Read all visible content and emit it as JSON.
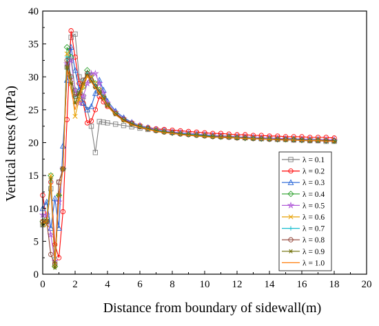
{
  "chart_data": {
    "type": "line",
    "title": "",
    "xlabel": "Distance from boundary of sidewall(m)",
    "ylabel": "Vertical stress (MPa)",
    "xlim": [
      0,
      20
    ],
    "ylim": [
      0,
      40
    ],
    "xticks": [
      0,
      2,
      4,
      6,
      8,
      10,
      12,
      14,
      16,
      18,
      20
    ],
    "yticks": [
      0,
      5,
      10,
      15,
      20,
      25,
      30,
      35,
      40
    ],
    "grid": false,
    "legend_position": "bottom-right",
    "series": [
      {
        "name": "λ = 0.1",
        "color": "#7f7f7f",
        "marker": "square",
        "x": [
          0,
          0.25,
          0.5,
          0.75,
          1,
          1.25,
          1.5,
          1.75,
          2,
          2.25,
          2.5,
          2.75,
          3,
          3.25,
          3.5,
          3.75,
          4,
          4.5,
          5,
          5.5,
          6,
          6.5,
          7,
          7.5,
          8,
          8.5,
          9,
          9.5,
          10,
          10.5,
          11,
          11.5,
          12,
          12.5,
          13,
          13.5,
          14,
          14.5,
          15,
          15.5,
          16,
          16.5,
          17,
          17.5,
          18
        ],
        "y": [
          7.5,
          8,
          13,
          1.8,
          14,
          16,
          31.5,
          36,
          36.5,
          30,
          27,
          25,
          22.5,
          18.5,
          23.2,
          23.1,
          23,
          22.8,
          22.6,
          22.4,
          22.2,
          22,
          21.9,
          21.8,
          21.6,
          21.5,
          21.4,
          21.3,
          21.2,
          21.1,
          21,
          20.9,
          20.8,
          20.8,
          20.7,
          20.6,
          20.6,
          20.5,
          20.5,
          20.4,
          20.4,
          20.3,
          20.3,
          20.2,
          20.2
        ]
      },
      {
        "name": "λ = 0.2",
        "color": "#ff0000",
        "marker": "circle",
        "x": [
          0,
          0.25,
          0.5,
          0.75,
          1,
          1.25,
          1.5,
          1.75,
          2,
          2.25,
          2.5,
          2.75,
          3,
          3.25,
          3.5,
          3.75,
          4,
          4.5,
          5,
          5.5,
          6,
          6.5,
          7,
          7.5,
          8,
          8.5,
          9,
          9.5,
          10,
          10.5,
          11,
          11.5,
          12,
          12.5,
          13,
          13.5,
          14,
          14.5,
          15,
          15.5,
          16,
          16.5,
          17,
          17.5,
          18
        ],
        "y": [
          12,
          8,
          14,
          4.5,
          2.5,
          9.5,
          23.5,
          37,
          33,
          29,
          26,
          23,
          23.3,
          25,
          27,
          26.2,
          25.5,
          24.5,
          23.6,
          23,
          22.6,
          22.3,
          22.1,
          22,
          21.9,
          21.8,
          21.7,
          21.6,
          21.5,
          21.4,
          21.4,
          21.3,
          21.2,
          21.2,
          21.1,
          21.1,
          21,
          21,
          20.9,
          20.9,
          20.9,
          20.8,
          20.8,
          20.8,
          20.7
        ]
      },
      {
        "name": "λ = 0.3",
        "color": "#1f5fd6",
        "marker": "triangle",
        "x": [
          0,
          0.25,
          0.5,
          0.75,
          1,
          1.25,
          1.5,
          1.75,
          2,
          2.25,
          2.5,
          2.75,
          3,
          3.25,
          3.5,
          3.75,
          4,
          4.5,
          5,
          5.5,
          6,
          6.5,
          7,
          7.5,
          8,
          8.5,
          9,
          9.5,
          10,
          10.5,
          11,
          11.5,
          12,
          12.5,
          13,
          13.5,
          14,
          14.5,
          15,
          15.5,
          16,
          16.5,
          17,
          17.5,
          18
        ],
        "y": [
          10,
          11,
          7,
          11.5,
          7,
          19.5,
          29.5,
          34.5,
          31,
          28,
          26,
          25,
          25.5,
          27.5,
          29.5,
          28,
          26.3,
          24.8,
          23.8,
          23.1,
          22.6,
          22.3,
          22,
          21.8,
          21.6,
          21.5,
          21.4,
          21.3,
          21.2,
          21.1,
          21,
          21,
          20.9,
          20.8,
          20.8,
          20.7,
          20.7,
          20.6,
          20.6,
          20.6,
          20.5,
          20.5,
          20.5,
          20.4,
          20.4
        ]
      },
      {
        "name": "λ = 0.4",
        "color": "#2ca02c",
        "marker": "diamond",
        "x": [
          0,
          0.25,
          0.5,
          0.75,
          1,
          1.25,
          1.5,
          1.75,
          2,
          2.25,
          2.5,
          2.75,
          3,
          3.25,
          3.5,
          3.75,
          4,
          4.5,
          5,
          5.5,
          6,
          6.5,
          7,
          7.5,
          8,
          8.5,
          9,
          9.5,
          10,
          10.5,
          11,
          11.5,
          12,
          12.5,
          13,
          13.5,
          14,
          14.5,
          15,
          15.5,
          16,
          16.5,
          17,
          17.5,
          18
        ],
        "y": [
          8,
          8.5,
          15,
          1.2,
          12,
          16,
          34.5,
          33,
          28,
          26.5,
          28.5,
          31,
          30.2,
          29,
          28,
          27,
          25.8,
          24.5,
          23.5,
          22.9,
          22.5,
          22.2,
          21.9,
          21.7,
          21.5,
          21.4,
          21.3,
          21.2,
          21.1,
          21,
          20.9,
          20.9,
          20.8,
          20.7,
          20.7,
          20.6,
          20.6,
          20.5,
          20.5,
          20.5,
          20.4,
          20.4,
          20.4,
          20.3,
          20.3
        ]
      },
      {
        "name": "λ = 0.5",
        "color": "#b05ad8",
        "marker": "star",
        "x": [
          0,
          0.25,
          0.5,
          0.75,
          1,
          1.25,
          1.5,
          1.75,
          2,
          2.25,
          2.5,
          2.75,
          3,
          3.25,
          3.5,
          3.75,
          4,
          4.5,
          5,
          5.5,
          6,
          6.5,
          7,
          7.5,
          8,
          8.5,
          9,
          9.5,
          10,
          10.5,
          11,
          11.5,
          12,
          12.5,
          13,
          13.5,
          14,
          14.5,
          15,
          15.5,
          16,
          16.5,
          17,
          17.5,
          18
        ],
        "y": [
          9,
          9,
          6,
          2,
          11,
          16,
          32,
          32.5,
          28,
          26,
          27,
          29,
          30.5,
          30.5,
          29,
          27.5,
          26,
          24.6,
          23.6,
          23,
          22.6,
          22.2,
          22,
          21.8,
          21.6,
          21.5,
          21.4,
          21.3,
          21.2,
          21.1,
          21,
          20.9,
          20.9,
          20.8,
          20.8,
          20.7,
          20.7,
          20.6,
          20.6,
          20.5,
          20.5,
          20.5,
          20.4,
          20.4,
          20.4
        ]
      },
      {
        "name": "λ = 0.6",
        "color": "#e8a000",
        "marker": "x",
        "x": [
          0,
          0.25,
          0.5,
          0.75,
          1,
          1.25,
          1.5,
          1.75,
          2,
          2.25,
          2.5,
          2.75,
          3,
          3.25,
          3.5,
          3.75,
          4,
          4.5,
          5,
          5.5,
          6,
          6.5,
          7,
          7.5,
          8,
          8.5,
          9,
          9.5,
          10,
          10.5,
          11,
          11.5,
          12,
          12.5,
          13,
          13.5,
          14,
          14.5,
          15,
          15.5,
          16,
          16.5,
          17,
          17.5,
          18
        ],
        "y": [
          8,
          7.5,
          15,
          1.5,
          12,
          16,
          33.5,
          29,
          24,
          26.5,
          28.5,
          30,
          30,
          29,
          28,
          27,
          25.8,
          24.5,
          23.5,
          22.9,
          22.5,
          22.1,
          21.9,
          21.7,
          21.5,
          21.4,
          21.3,
          21.2,
          21.1,
          21,
          20.9,
          20.9,
          20.8,
          20.7,
          20.7,
          20.6,
          20.6,
          20.5,
          20.5,
          20.5,
          20.4,
          20.4,
          20.4,
          20.3,
          20.3
        ]
      },
      {
        "name": "λ = 0.7",
        "color": "#17becf",
        "marker": "plus",
        "x": [
          0,
          0.25,
          0.5,
          0.75,
          1,
          1.25,
          1.5,
          1.75,
          2,
          2.25,
          2.5,
          2.75,
          3,
          3.25,
          3.5,
          3.75,
          4,
          4.5,
          5,
          5.5,
          6,
          6.5,
          7,
          7.5,
          8,
          8.5,
          9,
          9.5,
          10,
          10.5,
          11,
          11.5,
          12,
          12.5,
          13,
          13.5,
          14,
          14.5,
          15,
          15.5,
          16,
          16.5,
          17,
          17.5,
          18
        ],
        "y": [
          7.5,
          8,
          14,
          2.5,
          12,
          16,
          33,
          30,
          27,
          27.5,
          29.5,
          30.5,
          29.5,
          28.7,
          27.8,
          27,
          25.7,
          24.4,
          23.5,
          22.9,
          22.5,
          22.1,
          21.9,
          21.7,
          21.5,
          21.4,
          21.3,
          21.2,
          21.1,
          21,
          20.9,
          20.8,
          20.8,
          20.7,
          20.7,
          20.6,
          20.6,
          20.5,
          20.5,
          20.5,
          20.4,
          20.4,
          20.3,
          20.3,
          20.3
        ]
      },
      {
        "name": "λ = 0.8",
        "color": "#8c3b2e",
        "marker": "circle",
        "x": [
          0,
          0.25,
          0.5,
          0.75,
          1,
          1.25,
          1.5,
          1.75,
          2,
          2.25,
          2.5,
          2.75,
          3,
          3.25,
          3.5,
          3.75,
          4,
          4.5,
          5,
          5.5,
          6,
          6.5,
          7,
          7.5,
          8,
          8.5,
          9,
          9.5,
          10,
          10.5,
          11,
          11.5,
          12,
          12.5,
          13,
          13.5,
          14,
          14.5,
          15,
          15.5,
          16,
          16.5,
          17,
          17.5,
          18
        ],
        "y": [
          8,
          8,
          3,
          1.5,
          14,
          16,
          32.5,
          30,
          27,
          27.5,
          29.5,
          30.5,
          29.5,
          28.5,
          27.7,
          26.8,
          25.7,
          24.4,
          23.5,
          22.9,
          22.4,
          22.1,
          21.8,
          21.6,
          21.5,
          21.3,
          21.2,
          21.1,
          21,
          20.9,
          20.9,
          20.8,
          20.7,
          20.7,
          20.6,
          20.6,
          20.5,
          20.5,
          20.5,
          20.4,
          20.4,
          20.3,
          20.3,
          20.3,
          20.3
        ]
      },
      {
        "name": "λ = 0.9",
        "color": "#6b6b00",
        "marker": "asterisk",
        "x": [
          0,
          0.25,
          0.5,
          0.75,
          1,
          1.25,
          1.5,
          1.75,
          2,
          2.25,
          2.5,
          2.75,
          3,
          3.25,
          3.5,
          3.75,
          4,
          4.5,
          5,
          5.5,
          6,
          6.5,
          7,
          7.5,
          8,
          8.5,
          9,
          9.5,
          10,
          10.5,
          11,
          11.5,
          12,
          12.5,
          13,
          13.5,
          14,
          14.5,
          15,
          15.5,
          16,
          16.5,
          17,
          17.5,
          18
        ],
        "y": [
          7.5,
          8,
          14.5,
          1,
          12,
          16,
          31.5,
          29,
          26,
          27.5,
          29,
          30.2,
          29.3,
          28.4,
          27.6,
          26.7,
          25.6,
          24.3,
          23.4,
          22.8,
          22.4,
          22.1,
          21.8,
          21.6,
          21.5,
          21.3,
          21.2,
          21.1,
          21,
          20.9,
          20.8,
          20.8,
          20.7,
          20.7,
          20.6,
          20.6,
          20.5,
          20.5,
          20.4,
          20.4,
          20.4,
          20.3,
          20.3,
          20.3,
          20.2
        ]
      },
      {
        "name": "λ = 1.0",
        "color": "#ff7f0e",
        "marker": "line",
        "x": [
          0,
          0.25,
          0.5,
          0.75,
          1,
          1.25,
          1.5,
          1.75,
          2,
          2.25,
          2.5,
          2.75,
          3,
          3.25,
          3.5,
          3.75,
          4,
          4.5,
          5,
          5.5,
          6,
          6.5,
          7,
          7.5,
          8,
          8.5,
          9,
          9.5,
          10,
          10.5,
          11,
          11.5,
          12,
          12.5,
          13,
          13.5,
          14,
          14.5,
          15,
          15.5,
          16,
          16.5,
          17,
          17.5,
          18
        ],
        "y": [
          7.8,
          8,
          14,
          2,
          12,
          16,
          31,
          28,
          25,
          27,
          29,
          30.2,
          29.2,
          28.3,
          27.5,
          26.6,
          25.5,
          24.2,
          23.3,
          22.7,
          22.3,
          22,
          21.7,
          21.5,
          21.4,
          21.2,
          21.1,
          21,
          20.9,
          20.8,
          20.8,
          20.7,
          20.7,
          20.6,
          20.6,
          20.5,
          20.5,
          20.4,
          20.4,
          20.4,
          20.3,
          20.3,
          20.3,
          20.2,
          20.2
        ]
      }
    ]
  }
}
